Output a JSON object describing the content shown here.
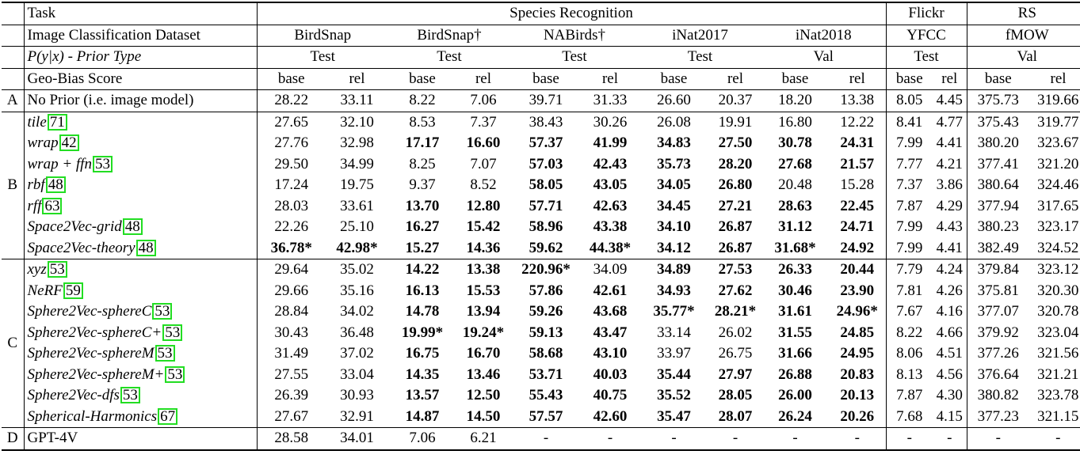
{
  "header": {
    "task_label": "Task",
    "dataset_label": "Image Classification Dataset",
    "prior_label": "P(y|x) - Prior Type",
    "score_label": "Geo-Bias Score",
    "tasks": [
      {
        "name": "Species Recognition"
      },
      {
        "name": "Flickr"
      },
      {
        "name": "RS"
      }
    ],
    "datasets": [
      {
        "name": "BirdSnap",
        "split": "Test"
      },
      {
        "name": "BirdSnap†",
        "split": "Test"
      },
      {
        "name": "NABirds†",
        "split": "Test"
      },
      {
        "name": "iNat2017",
        "split": "Test"
      },
      {
        "name": "iNat2018",
        "split": "Val"
      },
      {
        "name": "YFCC",
        "split": "Test"
      },
      {
        "name": "fMOW",
        "split": "Val"
      }
    ],
    "base": "base",
    "rel": "rel"
  },
  "groups": [
    {
      "id": "A",
      "rows": [
        {
          "name": "No Prior (i.e. image model)",
          "italic": false,
          "cite": "",
          "values": [
            "28.22",
            "33.11",
            "8.22",
            "7.06",
            "39.71",
            "31.33",
            "26.60",
            "20.37",
            "18.20",
            "13.38",
            "8.05",
            "4.45",
            "375.73",
            "319.66"
          ],
          "bold": [
            false,
            false,
            false,
            false,
            false,
            false,
            false,
            false,
            false,
            false,
            false,
            false,
            false,
            false
          ]
        }
      ]
    },
    {
      "id": "B",
      "rows": [
        {
          "name": "tile",
          "italic": true,
          "cite": "71",
          "values": [
            "27.65",
            "32.10",
            "8.53",
            "7.37",
            "38.43",
            "30.26",
            "26.08",
            "19.91",
            "16.80",
            "12.22",
            "8.41",
            "4.77",
            "375.43",
            "319.77"
          ],
          "bold": [
            false,
            false,
            false,
            false,
            false,
            false,
            false,
            false,
            false,
            false,
            false,
            false,
            false,
            false
          ]
        },
        {
          "name": "wrap",
          "italic": true,
          "cite": "42",
          "values": [
            "27.76",
            "32.98",
            "17.17",
            "16.60",
            "57.37",
            "41.99",
            "34.83",
            "27.50",
            "30.78",
            "24.31",
            "7.99",
            "4.41",
            "380.20",
            "323.67"
          ],
          "bold": [
            false,
            false,
            true,
            true,
            true,
            true,
            true,
            true,
            true,
            true,
            false,
            false,
            false,
            false
          ]
        },
        {
          "name": "wrap + ffn",
          "italic": true,
          "cite": "53",
          "values": [
            "29.50",
            "34.99",
            "8.25",
            "7.07",
            "57.03",
            "42.43",
            "35.73",
            "28.20",
            "27.68",
            "21.57",
            "7.77",
            "4.21",
            "377.41",
            "321.20"
          ],
          "bold": [
            false,
            false,
            false,
            false,
            true,
            true,
            true,
            true,
            true,
            true,
            false,
            false,
            false,
            false
          ]
        },
        {
          "name": "rbf",
          "italic": true,
          "cite": "48",
          "values": [
            "17.24",
            "19.75",
            "9.37",
            "8.52",
            "58.05",
            "43.05",
            "34.05",
            "26.80",
            "20.48",
            "15.28",
            "7.37",
            "3.86",
            "380.64",
            "324.46"
          ],
          "bold": [
            false,
            false,
            false,
            false,
            true,
            true,
            true,
            true,
            false,
            false,
            false,
            false,
            false,
            false
          ]
        },
        {
          "name": "rff",
          "italic": true,
          "cite": "63",
          "values": [
            "28.03",
            "33.61",
            "13.70",
            "12.80",
            "57.71",
            "42.63",
            "34.45",
            "27.21",
            "28.63",
            "22.45",
            "7.87",
            "4.29",
            "377.94",
            "317.65"
          ],
          "bold": [
            false,
            false,
            true,
            true,
            true,
            true,
            true,
            true,
            true,
            true,
            false,
            false,
            false,
            false
          ]
        },
        {
          "name": "Space2Vec-grid",
          "italic": true,
          "cite": "48",
          "values": [
            "22.26",
            "25.10",
            "16.27",
            "15.42",
            "58.96",
            "43.38",
            "34.10",
            "26.87",
            "31.12",
            "24.71",
            "7.99",
            "4.43",
            "380.23",
            "323.17"
          ],
          "bold": [
            false,
            false,
            true,
            true,
            true,
            true,
            true,
            true,
            true,
            true,
            false,
            false,
            false,
            false
          ]
        },
        {
          "name": "Space2Vec-theory",
          "italic": true,
          "cite": "48",
          "values": [
            "36.78*",
            "42.98*",
            "15.27",
            "14.36",
            "59.62",
            "44.38*",
            "34.12",
            "26.87",
            "31.68*",
            "24.92",
            "7.99",
            "4.41",
            "382.49",
            "324.52"
          ],
          "bold": [
            true,
            true,
            true,
            true,
            true,
            true,
            true,
            true,
            true,
            true,
            false,
            false,
            false,
            false
          ]
        }
      ]
    },
    {
      "id": "C",
      "rows": [
        {
          "name": "xyz",
          "italic": true,
          "cite": "53",
          "values": [
            "29.64",
            "35.02",
            "14.22",
            "13.38",
            "220.96*",
            "34.09",
            "34.89",
            "27.53",
            "26.33",
            "20.44",
            "7.79",
            "4.24",
            "379.84",
            "323.12"
          ],
          "bold": [
            false,
            false,
            true,
            true,
            true,
            false,
            true,
            true,
            true,
            true,
            false,
            false,
            false,
            false
          ]
        },
        {
          "name": "NeRF",
          "italic": true,
          "cite": "59",
          "values": [
            "29.66",
            "35.16",
            "16.13",
            "15.53",
            "57.86",
            "42.61",
            "34.93",
            "27.62",
            "30.46",
            "23.90",
            "7.81",
            "4.26",
            "375.81",
            "320.30"
          ],
          "bold": [
            false,
            false,
            true,
            true,
            true,
            true,
            true,
            true,
            true,
            true,
            false,
            false,
            false,
            false
          ]
        },
        {
          "name": "Sphere2Vec-sphereC",
          "italic": true,
          "cite": "53",
          "values": [
            "28.84",
            "34.02",
            "14.78",
            "13.94",
            "59.26",
            "43.68",
            "35.77*",
            "28.21*",
            "31.61",
            "24.96*",
            "7.67",
            "4.16",
            "377.07",
            "320.78"
          ],
          "bold": [
            false,
            false,
            true,
            true,
            true,
            true,
            true,
            true,
            true,
            true,
            false,
            false,
            false,
            false
          ]
        },
        {
          "name": "Sphere2Vec-sphereC+",
          "italic": true,
          "cite": "53",
          "values": [
            "30.43",
            "36.48",
            "19.99*",
            "19.24*",
            "59.13",
            "43.47",
            "33.14",
            "26.02",
            "31.55",
            "24.85",
            "8.22",
            "4.66",
            "379.92",
            "323.04"
          ],
          "bold": [
            false,
            false,
            true,
            true,
            true,
            true,
            false,
            false,
            true,
            true,
            false,
            false,
            false,
            false
          ]
        },
        {
          "name": "Sphere2Vec-sphereM",
          "italic": true,
          "cite": "53",
          "values": [
            "31.49",
            "37.02",
            "16.75",
            "16.70",
            "58.68",
            "43.10",
            "33.97",
            "26.75",
            "31.66",
            "24.95",
            "8.06",
            "4.51",
            "377.26",
            "321.56"
          ],
          "bold": [
            false,
            false,
            true,
            true,
            true,
            true,
            false,
            false,
            true,
            true,
            false,
            false,
            false,
            false
          ]
        },
        {
          "name": "Sphere2Vec-sphereM+",
          "italic": true,
          "cite": "53",
          "values": [
            "27.55",
            "33.04",
            "14.35",
            "13.46",
            "53.71",
            "40.03",
            "35.44",
            "27.97",
            "26.88",
            "20.83",
            "8.13",
            "4.56",
            "376.64",
            "321.21"
          ],
          "bold": [
            false,
            false,
            true,
            true,
            true,
            true,
            true,
            true,
            true,
            true,
            false,
            false,
            false,
            false
          ]
        },
        {
          "name": "Sphere2Vec-dfs",
          "italic": true,
          "cite": "53",
          "values": [
            "26.39",
            "30.93",
            "13.57",
            "12.50",
            "55.43",
            "40.75",
            "35.52",
            "28.05",
            "26.00",
            "20.13",
            "7.87",
            "4.30",
            "380.82",
            "323.78"
          ],
          "bold": [
            false,
            false,
            true,
            true,
            true,
            true,
            true,
            true,
            true,
            true,
            false,
            false,
            false,
            false
          ]
        },
        {
          "name": "Spherical-Harmonics",
          "italic": true,
          "cite": "67",
          "values": [
            "27.67",
            "32.91",
            "14.87",
            "14.50",
            "57.57",
            "42.60",
            "35.47",
            "28.07",
            "26.24",
            "20.26",
            "7.68",
            "4.15",
            "377.23",
            "321.15"
          ],
          "bold": [
            false,
            false,
            true,
            true,
            true,
            true,
            true,
            true,
            true,
            true,
            false,
            false,
            false,
            false
          ]
        }
      ]
    },
    {
      "id": "D",
      "rows": [
        {
          "name": "GPT-4V",
          "italic": false,
          "cite": "",
          "values": [
            "28.58",
            "34.01",
            "7.06",
            "6.21",
            "-",
            "-",
            "-",
            "-",
            "-",
            "-",
            "-",
            "-",
            "-",
            "-"
          ],
          "bold": [
            false,
            false,
            false,
            false,
            false,
            false,
            false,
            false,
            false,
            false,
            false,
            false,
            false,
            false
          ]
        }
      ]
    }
  ]
}
